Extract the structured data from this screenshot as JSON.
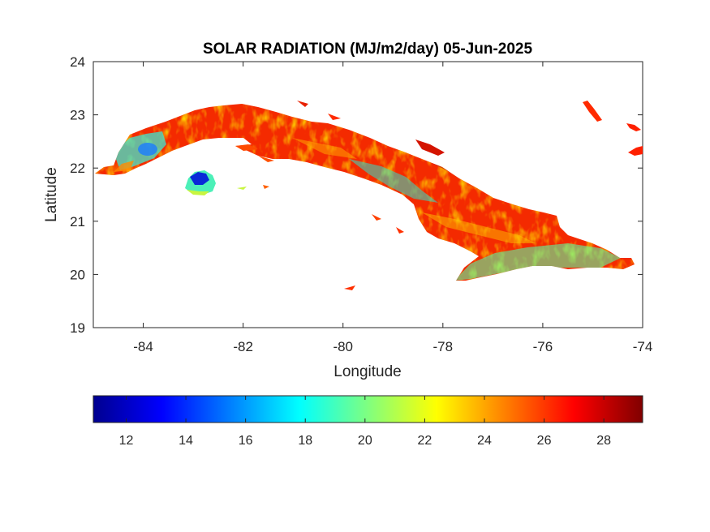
{
  "map": {
    "title": "SOLAR RADIATION (MJ/m2/day) 05-Jun-2025",
    "xlabel": "Longitude",
    "ylabel": "Latitude",
    "xlim": [
      -85,
      -74
    ],
    "ylim": [
      19,
      24
    ],
    "xticks": [
      "-84",
      "-82",
      "-80",
      "-78",
      "-76",
      "-74"
    ],
    "yticks": [
      "19",
      "20",
      "21",
      "22",
      "23",
      "24"
    ],
    "colormap": "jet",
    "colorbar": {
      "location": "bottom",
      "range": [
        10.9,
        29.3
      ],
      "ticks": [
        "12",
        "14",
        "16",
        "18",
        "20",
        "22",
        "24",
        "26",
        "28"
      ]
    }
  }
}
